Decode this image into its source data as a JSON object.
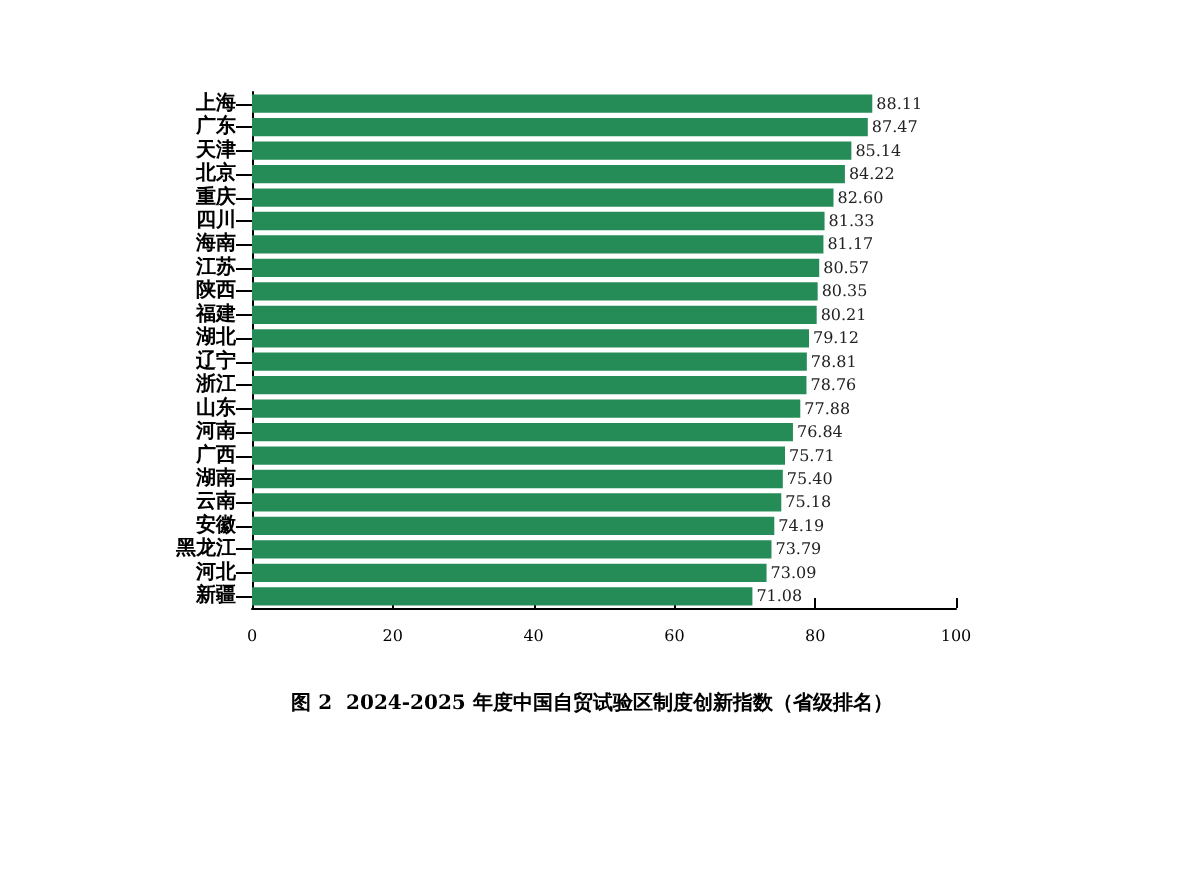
{
  "chart_data": {
    "type": "bar",
    "orientation": "horizontal",
    "title": "图 2  2024-2025 年度中国自贸试验区制度创新指数（省级排名）",
    "categories": [
      "上海",
      "广东",
      "天津",
      "北京",
      "重庆",
      "四川",
      "海南",
      "江苏",
      "陕西",
      "福建",
      "湖北",
      "辽宁",
      "浙江",
      "山东",
      "河南",
      "广西",
      "湖南",
      "云南",
      "安徽",
      "黑龙江",
      "河北",
      "新疆"
    ],
    "values": [
      88.11,
      87.47,
      85.14,
      84.22,
      82.6,
      81.33,
      81.17,
      80.57,
      80.35,
      80.21,
      79.12,
      78.81,
      78.76,
      77.88,
      76.84,
      75.71,
      75.4,
      75.18,
      74.19,
      73.79,
      73.09,
      71.08
    ],
    "value_labels": [
      "88.11",
      "87.47",
      "85.14",
      "84.22",
      "82.60",
      "81.33",
      "81.17",
      "80.57",
      "80.35",
      "80.21",
      "79.12",
      "78.81",
      "78.76",
      "77.88",
      "76.84",
      "75.71",
      "75.40",
      "75.18",
      "74.19",
      "73.79",
      "73.09",
      "71.08"
    ],
    "color": "#268c57",
    "xlim": [
      0,
      100
    ],
    "xticks": [
      0,
      20,
      40,
      60,
      80,
      100
    ],
    "grid": false
  }
}
